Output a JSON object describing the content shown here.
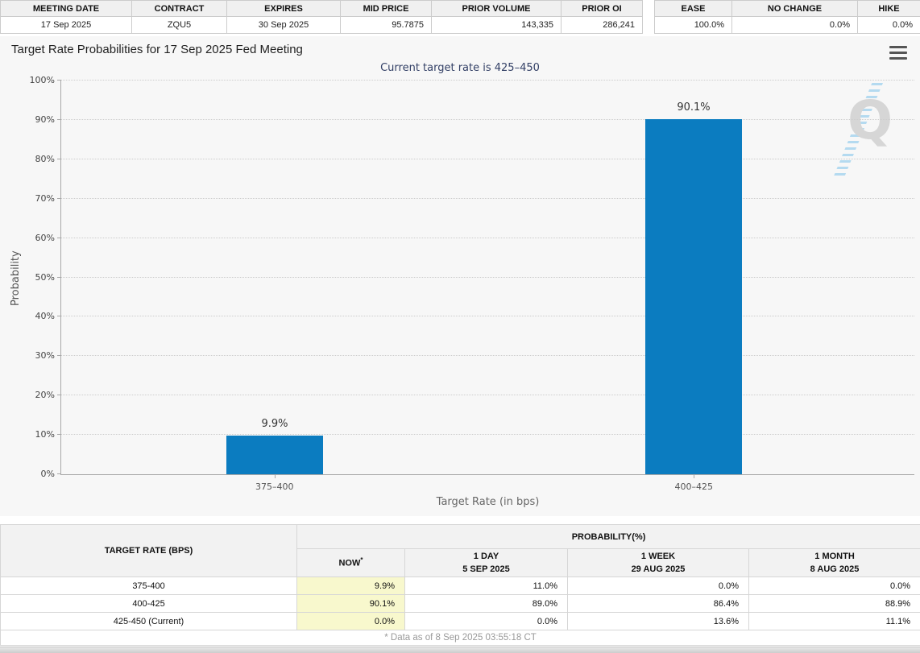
{
  "contract_strip": {
    "main": {
      "headers": [
        "MEETING DATE",
        "CONTRACT",
        "EXPIRES",
        "MID PRICE",
        "PRIOR VOLUME",
        "PRIOR OI"
      ],
      "values": [
        "17 Sep 2025",
        "ZQU5",
        "30 Sep 2025",
        "95.7875",
        "143,335",
        "286,241"
      ]
    },
    "summary": {
      "headers": [
        "EASE",
        "NO CHANGE",
        "HIKE"
      ],
      "values": [
        "100.0%",
        "0.0%",
        "0.0%"
      ]
    }
  },
  "chart_data": {
    "type": "bar",
    "title": "Target Rate Probabilities for 17 Sep 2025 Fed Meeting",
    "subtitle": "Current target rate is 425–450",
    "categories": [
      "375–400",
      "400–425"
    ],
    "values": [
      9.9,
      90.1
    ],
    "value_labels": [
      "9.9%",
      "90.1%"
    ],
    "xlabel": "Target Rate (in bps)",
    "ylabel": "Probability",
    "ylim": [
      0,
      100
    ],
    "y_tick_labels": [
      "0%",
      "10%",
      "20%",
      "30%",
      "40%",
      "50%",
      "60%",
      "70%",
      "80%",
      "90%",
      "100%"
    ],
    "grid": "horizontal-dotted",
    "legend": "none",
    "bar_color": "#0b7cc0",
    "subtitle_color": "#334066",
    "watermark": "Q"
  },
  "prob_table": {
    "rate_header": "TARGET RATE (BPS)",
    "group_header": "PROBABILITY(%)",
    "col_now": "NOW",
    "col_now_mark": "*",
    "cols": [
      {
        "period": "1 DAY",
        "date": "5 SEP 2025"
      },
      {
        "period": "1 WEEK",
        "date": "29 AUG 2025"
      },
      {
        "period": "1 MONTH",
        "date": "8 AUG 2025"
      }
    ],
    "rows": [
      {
        "rate": "375-400",
        "now": "9.9%",
        "day": "11.0%",
        "week": "0.0%",
        "month": "0.0%"
      },
      {
        "rate": "400-425",
        "now": "90.1%",
        "day": "89.0%",
        "week": "86.4%",
        "month": "88.9%"
      },
      {
        "rate": "425-450 (Current)",
        "now": "0.0%",
        "day": "0.0%",
        "week": "13.6%",
        "month": "11.1%"
      }
    ],
    "now_highlight_color": "#f8f8cd",
    "footnote": "* Data as of 8 Sep 2025 03:55:18 CT"
  }
}
